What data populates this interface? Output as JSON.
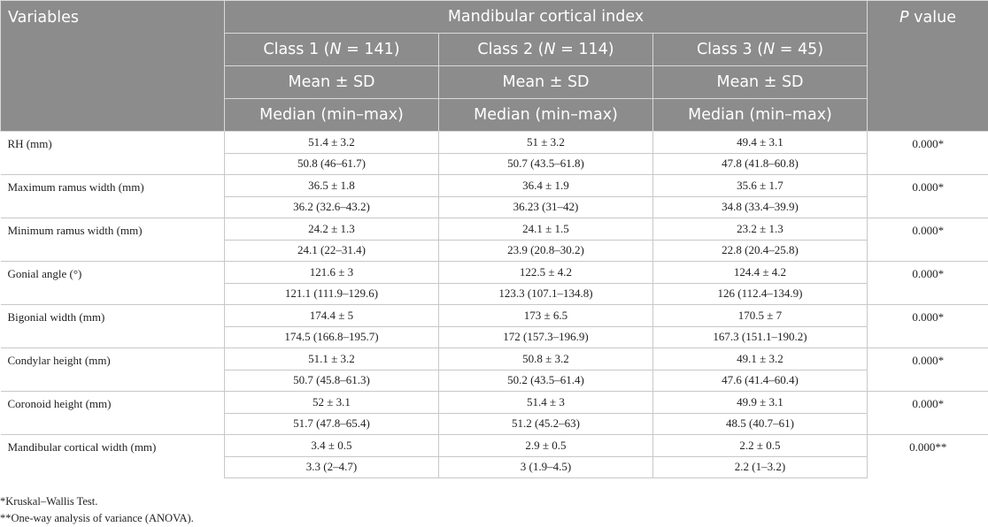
{
  "table": {
    "header": {
      "variables": "Variables",
      "group": "Mandibular cortical index",
      "p_value_italic": "P",
      "p_value_rest": " value",
      "classes": [
        {
          "prefix": "Class 1 (",
          "n_label": "N",
          "suffix": " = 141)"
        },
        {
          "prefix": "Class 2 (",
          "n_label": "N",
          "suffix": " = 114)"
        },
        {
          "prefix": "Class 3 (",
          "n_label": "N",
          "suffix": " = 45)"
        }
      ],
      "stat_row1": "Mean ± SD",
      "stat_row2": "Median (min–max)"
    },
    "rows": [
      {
        "variable": "RH (mm)",
        "mean_sd": [
          "51.4 ± 3.2",
          "51 ± 3.2",
          "49.4 ± 3.1"
        ],
        "median": [
          "50.8 (46–61.7)",
          "50.7 (43.5–61.8)",
          "47.8 (41.8–60.8)"
        ],
        "p": "0.000*"
      },
      {
        "variable": "Maximum ramus width (mm)",
        "mean_sd": [
          "36.5 ± 1.8",
          "36.4 ± 1.9",
          "35.6 ± 1.7"
        ],
        "median": [
          "36.2 (32.6–43.2)",
          "36.23 (31–42)",
          "34.8 (33.4–39.9)"
        ],
        "p": "0.000*"
      },
      {
        "variable": "Minimum ramus width (mm)",
        "mean_sd": [
          "24.2 ± 1.3",
          "24.1 ± 1.5",
          "23.2 ± 1.3"
        ],
        "median": [
          "24.1 (22–31.4)",
          "23.9 (20.8–30.2)",
          "22.8 (20.4–25.8)"
        ],
        "p": "0.000*"
      },
      {
        "variable": "Gonial angle (°)",
        "mean_sd": [
          "121.6 ± 3",
          "122.5 ± 4.2",
          "124.4 ± 4.2"
        ],
        "median": [
          "121.1 (111.9–129.6)",
          "123.3 (107.1–134.8)",
          "126 (112.4–134.9)"
        ],
        "p": "0.000*"
      },
      {
        "variable": "Bigonial width (mm)",
        "mean_sd": [
          "174.4 ± 5",
          "173 ± 6.5",
          "170.5 ± 7"
        ],
        "median": [
          "174.5 (166.8–195.7)",
          "172 (157.3–196.9)",
          "167.3 (151.1–190.2)"
        ],
        "p": "0.000*"
      },
      {
        "variable": "Condylar height (mm)",
        "mean_sd": [
          "51.1 ± 3.2",
          "50.8 ± 3.2",
          "49.1 ± 3.2"
        ],
        "median": [
          "50.7 (45.8–61.3)",
          "50.2 (43.5–61.4)",
          "47.6 (41.4–60.4)"
        ],
        "p": "0.000*"
      },
      {
        "variable": "Coronoid height (mm)",
        "mean_sd": [
          "52 ± 3.1",
          "51.4 ± 3",
          "49.9 ± 3.1"
        ],
        "median": [
          "51.7 (47.8–65.4)",
          "51.2 (45.2–63)",
          "48.5 (40.7–61)"
        ],
        "p": "0.000*"
      },
      {
        "variable": "Mandibular cortical width (mm)",
        "mean_sd": [
          "3.4 ± 0.5",
          "2.9 ± 0.5",
          "2.2 ± 0.5"
        ],
        "median": [
          "3.3 (2–4.7)",
          "3 (1.9–4.5)",
          "2.2 (1–3.2)"
        ],
        "p": "0.000**"
      }
    ]
  },
  "footnotes": [
    "*Kruskal–Wallis Test.",
    "**One-way analysis of variance (ANOVA)."
  ],
  "colors": {
    "header_bg": "#8c8c8c",
    "header_text": "#ffffff",
    "grid": "#c8c8c8"
  }
}
